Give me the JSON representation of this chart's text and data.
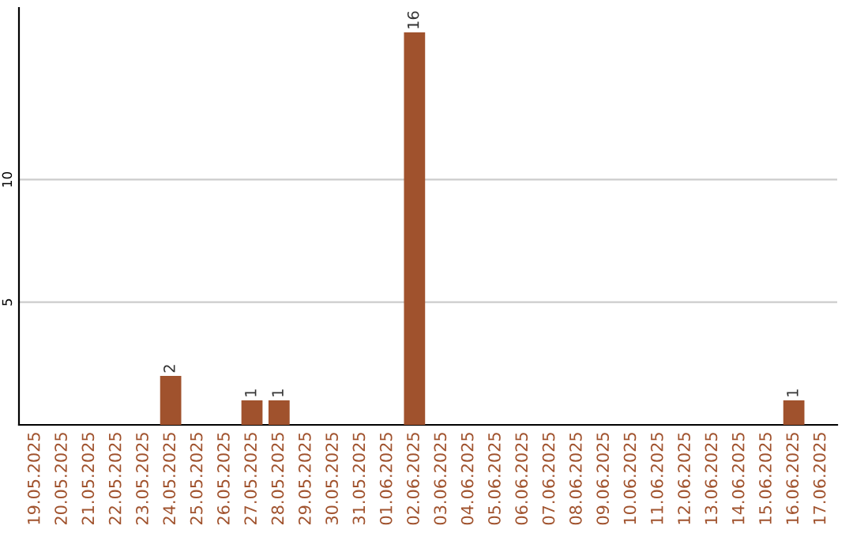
{
  "chart_data": {
    "type": "bar",
    "categories": [
      "19.05.2025",
      "20.05.2025",
      "21.05.2025",
      "22.05.2025",
      "23.05.2025",
      "24.05.2025",
      "25.05.2025",
      "26.05.2025",
      "27.05.2025",
      "28.05.2025",
      "29.05.2025",
      "30.05.2025",
      "31.05.2025",
      "01.06.2025",
      "02.06.2025",
      "03.06.2025",
      "04.06.2025",
      "05.06.2025",
      "06.06.2025",
      "07.06.2025",
      "08.06.2025",
      "09.06.2025",
      "10.06.2025",
      "11.06.2025",
      "12.06.2025",
      "13.06.2025",
      "14.06.2025",
      "15.06.2025",
      "16.06.2025",
      "17.06.2025"
    ],
    "values": [
      0,
      0,
      0,
      0,
      0,
      2,
      0,
      0,
      1,
      1,
      0,
      0,
      0,
      0,
      16,
      0,
      0,
      0,
      0,
      0,
      0,
      0,
      0,
      0,
      0,
      0,
      0,
      0,
      1,
      0
    ],
    "value_labels": [
      null,
      null,
      null,
      null,
      null,
      "2",
      null,
      null,
      "1",
      "1",
      null,
      null,
      null,
      null,
      "16",
      null,
      null,
      null,
      null,
      null,
      null,
      null,
      null,
      null,
      null,
      null,
      null,
      null,
      "1",
      null
    ],
    "color": "#a0522d",
    "ylim": [
      0,
      17
    ],
    "yticks": [
      5,
      10
    ],
    "grid": "y"
  }
}
